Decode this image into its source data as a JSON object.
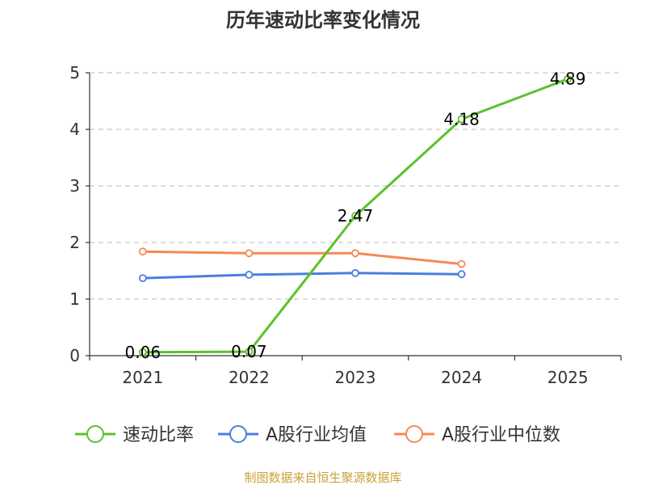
{
  "chart_data": {
    "type": "line",
    "title": "历年速动比率变化情况",
    "categories": [
      "2021",
      "2022",
      "2023",
      "2024",
      "2025"
    ],
    "ylim": [
      0,
      5
    ],
    "yticks": [
      "0",
      "1",
      "2",
      "3",
      "4",
      "5"
    ],
    "grid": true,
    "legend_position": "bottom",
    "series": [
      {
        "name": "速动比率",
        "color": "#5cc12b",
        "values": [
          0.06,
          0.07,
          2.47,
          4.18,
          4.89
        ],
        "labels": [
          "0.06",
          "0.07",
          "2.47",
          "4.18",
          "4.89"
        ]
      },
      {
        "name": "A股行业均值",
        "color": "#4a7fdc",
        "values": [
          1.37,
          1.43,
          1.46,
          1.44,
          null
        ]
      },
      {
        "name": "A股行业中位数",
        "color": "#f58a55",
        "values": [
          1.84,
          1.81,
          1.81,
          1.62,
          null
        ]
      }
    ]
  },
  "source_text": "制图数据来自恒生聚源数据库",
  "source_color": "#c8a23a"
}
